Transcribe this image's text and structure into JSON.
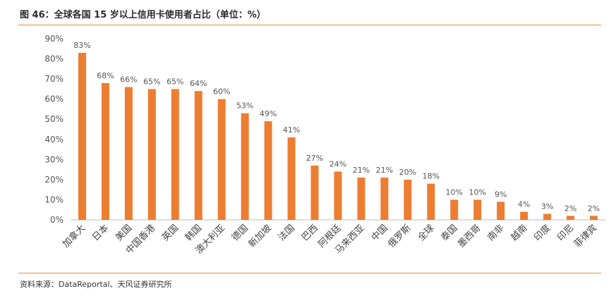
{
  "title": "图 46：全球各国 15 岁以上信用卡使用者占比（单位：%）",
  "source": "资料来源：DataReportal、天风证券研究所",
  "colors": {
    "bar": "#ed7d31",
    "rule": "#e88a3a",
    "axis": "#bfbfbf"
  },
  "chart_data": {
    "type": "bar",
    "categories": [
      "加拿大",
      "日本",
      "美国",
      "中国香港",
      "英国",
      "韩国",
      "澳大利亚",
      "德国",
      "新加坡",
      "法国",
      "巴西",
      "阿根廷",
      "马来西亚",
      "中国",
      "俄罗斯",
      "全球",
      "泰国",
      "墨西哥",
      "南非",
      "越南",
      "印度",
      "印尼",
      "菲律宾"
    ],
    "values": [
      83,
      68,
      66,
      65,
      65,
      64,
      60,
      53,
      49,
      41,
      27,
      24,
      21,
      21,
      20,
      18,
      10,
      10,
      9,
      4,
      3,
      2,
      2
    ],
    "data_labels": [
      "83%",
      "68%",
      "66%",
      "65%",
      "65%",
      "64%",
      "60%",
      "53%",
      "49%",
      "41%",
      "27%",
      "24%",
      "21%",
      "21%",
      "20%",
      "18%",
      "10%",
      "10%",
      "9%",
      "4%",
      "3%",
      "2%",
      "2%"
    ],
    "yticks": [
      "0%",
      "10%",
      "20%",
      "30%",
      "40%",
      "50%",
      "60%",
      "70%",
      "80%",
      "90%"
    ],
    "ylim": [
      0,
      90
    ],
    "grid": false,
    "legend": "none"
  }
}
